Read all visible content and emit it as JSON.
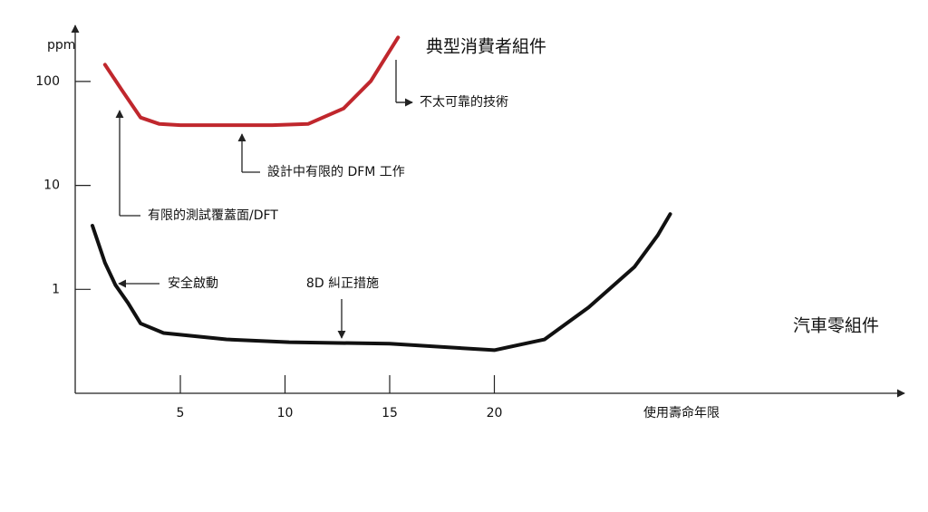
{
  "chart_data": {
    "type": "line",
    "log_y": true,
    "y_label": "ppm",
    "x_label": "使用壽命年限",
    "xlim": [
      0,
      40
    ],
    "xticks": [
      5,
      10,
      15,
      20
    ],
    "ylim": [
      0.1,
      300
    ],
    "yticks": [
      1,
      10,
      100
    ],
    "series": [
      {
        "name": "典型消費者組件",
        "color": "#c0272d",
        "x": [
          1.4,
          2.2,
          3.1,
          4.0,
          5.0,
          9.4,
          11.1,
          12.8,
          14.1,
          15.4
        ],
        "values": [
          145,
          83,
          45,
          39,
          38,
          38,
          39,
          55,
          101,
          265
        ]
      },
      {
        "name": "汽車零組件",
        "color": "#111111",
        "x": [
          0.8,
          1.4,
          1.9,
          2.5,
          3.1,
          4.2,
          7.2,
          10.2,
          15.0,
          20.0,
          22.4,
          24.5,
          26.7,
          27.8,
          28.4
        ],
        "values": [
          4.1,
          1.8,
          1.1,
          0.74,
          0.47,
          0.38,
          0.33,
          0.31,
          0.3,
          0.26,
          0.33,
          0.67,
          1.65,
          3.3,
          5.3
        ]
      }
    ],
    "annotations": [
      "不太可靠的技術",
      "設計中有限的 DFM 工作",
      "有限的測試覆蓋面/DFT",
      "安全啟動",
      "8D 糾正措施"
    ]
  }
}
